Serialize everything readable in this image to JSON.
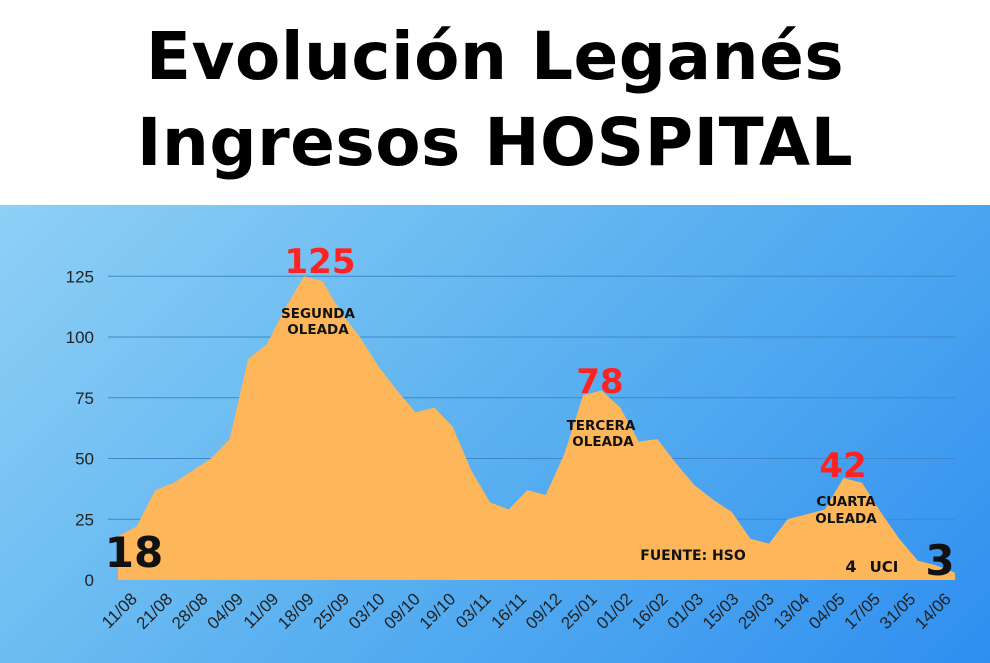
{
  "title": {
    "line1": "Evolución Leganés",
    "line2": "Ingresos HOSPITAL"
  },
  "colors": {
    "area": "#fdb75a",
    "peak_text": "#ff2222",
    "grid": "#3f87c9",
    "uci_red": "#ff2222",
    "uci_white": "#ffffff"
  },
  "chart_data": {
    "type": "area",
    "title": "Evolución Leganés Ingresos HOSPITAL",
    "xlabel": "",
    "ylabel": "",
    "ylim": [
      0,
      135
    ],
    "yticks": [
      0,
      25,
      50,
      75,
      100,
      125
    ],
    "grid": true,
    "x_tick_labels": [
      "11/08",
      "21/08",
      "28/08",
      "04/09",
      "11/09",
      "18/09",
      "25/09",
      "03/10",
      "09/10",
      "19/10",
      "03/11",
      "16/11",
      "09/12",
      "25/01",
      "01/02",
      "16/02",
      "01/03",
      "15/03",
      "29/03",
      "13/04",
      "04/05",
      "17/05",
      "31/05",
      "14/06"
    ],
    "values": [
      18,
      22,
      37,
      40,
      45,
      50,
      58,
      91,
      97,
      112,
      125,
      123,
      110,
      100,
      88,
      78,
      69,
      71,
      63,
      45,
      32,
      29,
      37,
      35,
      52,
      76,
      78,
      71,
      57,
      58,
      48,
      39,
      33,
      28,
      17,
      15,
      25,
      27,
      29,
      42,
      40,
      28,
      17,
      8,
      6,
      3
    ],
    "annotations": [
      {
        "text": "125",
        "kind": "peak_value",
        "x_index": 10
      },
      {
        "text": "SEGUNDA",
        "kind": "wave_label"
      },
      {
        "text": "OLEADA",
        "kind": "wave_label"
      },
      {
        "text": "78",
        "kind": "peak_value",
        "x_index": 26
      },
      {
        "text": "TERCERA",
        "kind": "wave_label"
      },
      {
        "text": "OLEADA",
        "kind": "wave_label"
      },
      {
        "text": "42",
        "kind": "peak_value",
        "x_index": 39
      },
      {
        "text": "CUARTA",
        "kind": "wave_label"
      },
      {
        "text": "OLEADA",
        "kind": "wave_label"
      },
      {
        "text": "18",
        "kind": "start_value"
      },
      {
        "text": "3",
        "kind": "end_value"
      },
      {
        "text": "FUENTE: HSO",
        "kind": "source"
      },
      {
        "text": "4",
        "kind": "uci_count"
      },
      {
        "text": "UCI",
        "kind": "uci_label"
      }
    ]
  }
}
